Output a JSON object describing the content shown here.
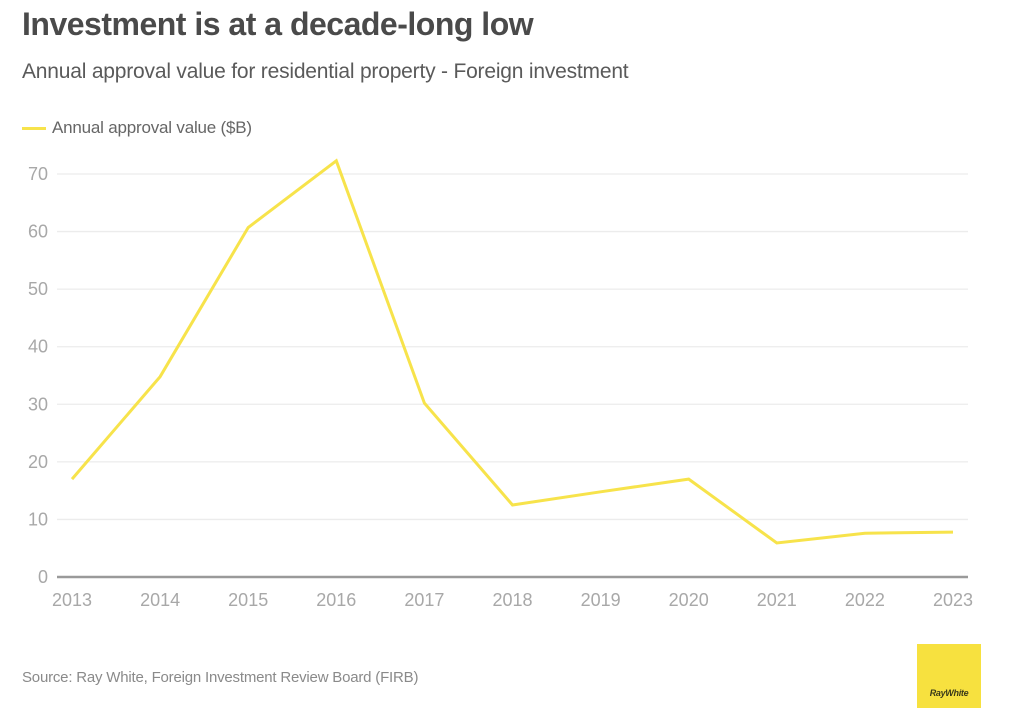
{
  "header": {
    "title": "Investment is at a decade-long low",
    "subtitle": "Annual approval value for residential property - Foreign investment"
  },
  "footer": {
    "source": "Source: Ray White, Foreign Investment Review Board (FIRB)",
    "logo_text": "RayWhite"
  },
  "colors": {
    "series": "#f7e34b",
    "logo_bg": "#f7e13f",
    "gridline": "#ececec",
    "axis": "#9a9a9a"
  },
  "chart_data": {
    "type": "line",
    "title": "Investment is at a decade-long low",
    "subtitle": "Annual approval value for residential property - Foreign investment",
    "xlabel": "",
    "ylabel": "",
    "categories": [
      "2013",
      "2014",
      "2015",
      "2016",
      "2017",
      "2018",
      "2019",
      "2020",
      "2021",
      "2022",
      "2023"
    ],
    "series": [
      {
        "name": "Annual approval value ($B)",
        "values": [
          17.0,
          34.8,
          60.7,
          72.3,
          30.2,
          12.5,
          14.8,
          17.0,
          5.9,
          7.6,
          7.8
        ]
      }
    ],
    "ylim": [
      0,
      70
    ],
    "yticks": [
      "0",
      "10",
      "20",
      "30",
      "40",
      "50",
      "60",
      "70"
    ],
    "grid": true,
    "legend": "top-left",
    "source": "Source: Ray White, Foreign Investment Review Board (FIRB)"
  }
}
